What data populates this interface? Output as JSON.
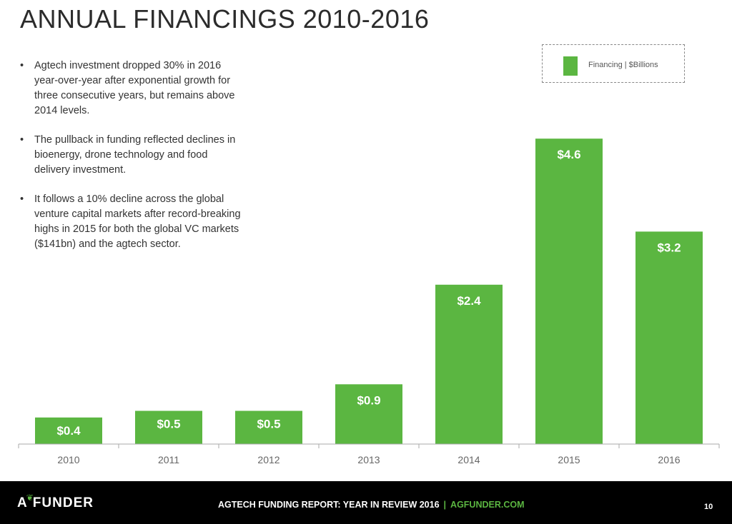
{
  "title": "ANNUAL FINANCINGS 2010-2016",
  "bullets": [
    "Agtech investment dropped 30% in 2016 year-over-year after exponential growth for three consecutive years, but remains above 2014 levels.",
    "The pullback in funding reflected declines in bioenergy, drone technology and food delivery investment.",
    "It follows a 10% decline across the global venture capital markets after record-breaking highs in 2015 for both the global VC markets ($141bn) and the agtech sector."
  ],
  "colors": {
    "bar": "#5bb641",
    "axis": "#aaaaaa",
    "footer_bg": "#000000"
  },
  "chart_data": {
    "type": "bar",
    "categories": [
      "2010",
      "2011",
      "2012",
      "2013",
      "2014",
      "2015",
      "2016"
    ],
    "series": [
      {
        "name": "Financing | $Billions",
        "values": [
          0.4,
          0.5,
          0.5,
          0.9,
          2.4,
          4.6,
          3.2
        ]
      }
    ],
    "data_labels": [
      "$0.4",
      "$0.5",
      "$0.5",
      "$0.9",
      "$2.4",
      "$4.6",
      "$3.2"
    ],
    "legend_position": "top-right",
    "grid": false
  },
  "footer": {
    "logo_pre": "A",
    "logo_post": "FUNDER",
    "logo_icon": "leaf-icon",
    "report_title": "AGTECH FUNDING REPORT: YEAR IN REVIEW 2016",
    "separator": "|",
    "site": "AGFUNDER.COM",
    "page_number": "10"
  }
}
